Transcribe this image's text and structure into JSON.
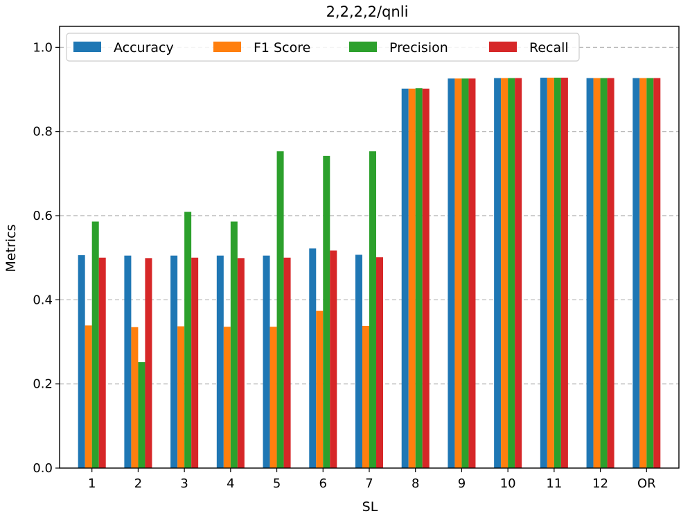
{
  "chart_data": {
    "type": "bar",
    "title": "2,2,2,2/qnli",
    "xlabel": "SL",
    "ylabel": "Metrics",
    "ylim": [
      0,
      1.05
    ],
    "yticks": [
      "0.0",
      "0.2",
      "0.4",
      "0.6",
      "0.8",
      "1.0"
    ],
    "ytick_values": [
      0,
      0.2,
      0.4,
      0.6,
      0.8,
      1.0
    ],
    "grid": "y-dashed",
    "legend_position": "top-left",
    "categories": [
      "1",
      "2",
      "3",
      "4",
      "5",
      "6",
      "7",
      "8",
      "9",
      "10",
      "11",
      "12",
      "OR"
    ],
    "series": [
      {
        "name": "Accuracy",
        "color": "#1f77b4",
        "values": [
          0.506,
          0.505,
          0.505,
          0.505,
          0.505,
          0.522,
          0.507,
          0.902,
          0.926,
          0.927,
          0.928,
          0.927,
          0.927
        ]
      },
      {
        "name": "F1 Score",
        "color": "#ff7f0e",
        "values": [
          0.339,
          0.335,
          0.337,
          0.336,
          0.336,
          0.374,
          0.338,
          0.902,
          0.926,
          0.927,
          0.928,
          0.927,
          0.927
        ]
      },
      {
        "name": "Precision",
        "color": "#2ca02c",
        "values": [
          0.586,
          0.252,
          0.609,
          0.586,
          0.753,
          0.742,
          0.753,
          0.903,
          0.926,
          0.927,
          0.928,
          0.927,
          0.927
        ]
      },
      {
        "name": "Recall",
        "color": "#d62728",
        "values": [
          0.5,
          0.499,
          0.5,
          0.499,
          0.5,
          0.517,
          0.501,
          0.902,
          0.926,
          0.927,
          0.928,
          0.927,
          0.927
        ]
      }
    ]
  }
}
